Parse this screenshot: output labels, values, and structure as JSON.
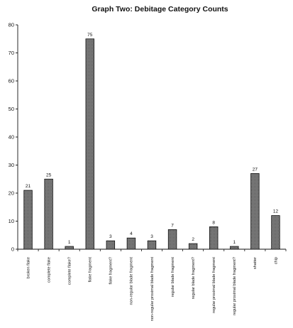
{
  "chart_data": {
    "type": "bar",
    "title": "Graph Two: Debitage Category Counts",
    "categories": [
      "broken flake",
      "complete flake",
      "complete flake?",
      "flake fragment",
      "flake fragment?",
      "non-regular blade fragment",
      "non-regular proximal blade fragment",
      "regular blade fragment",
      "regular blade fragment?",
      "regular proximal blade fragment",
      "regular proximal blade fragment?",
      "shatter",
      "chip"
    ],
    "values": [
      21,
      25,
      1,
      75,
      3,
      4,
      3,
      7,
      2,
      8,
      1,
      27,
      12
    ],
    "data_labels": [
      "21",
      "25",
      "1",
      "75",
      "3",
      "4",
      "3",
      "7",
      "2",
      "8",
      "1",
      "27",
      "12"
    ],
    "ylim": [
      0,
      80
    ],
    "yticks": [
      0,
      10,
      20,
      30,
      40,
      50,
      60,
      70,
      80
    ],
    "ytick_labels": [
      "0",
      "10",
      "20",
      "30",
      "40",
      "50",
      "60",
      "70",
      "80"
    ],
    "xlabel": "",
    "ylabel": "",
    "grid": false,
    "legend": "none",
    "colors": {
      "bar_fill": "#9a9a9a",
      "bar_hatch": "#3a3a3a",
      "axis": "#111111",
      "text": "#111111"
    }
  }
}
